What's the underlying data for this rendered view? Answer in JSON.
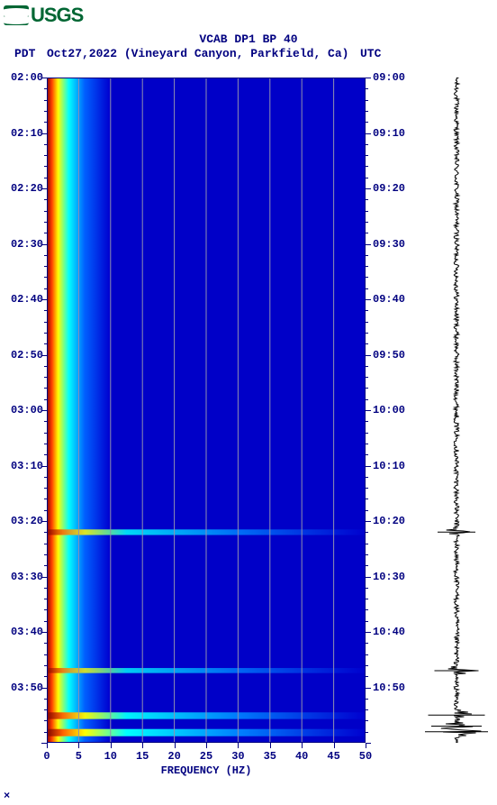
{
  "logo_text": "USGS",
  "title": "VCAB DP1 BP 40",
  "timezone_left": "PDT",
  "timezone_right": "UTC",
  "date_location": "Oct27,2022 (Vineyard Canyon, Parkfield, Ca)",
  "x_axis_label": "FREQUENCY (HZ)",
  "chart": {
    "type": "spectrogram",
    "x_range": [
      0,
      50
    ],
    "x_ticks": [
      0,
      5,
      10,
      15,
      20,
      25,
      30,
      35,
      40,
      45,
      50
    ],
    "time_start_pdt": "02:00",
    "time_end_pdt": "04:00",
    "time_start_utc": "09:00",
    "time_end_utc": "11:00",
    "y_ticks_pdt": [
      "02:00",
      "02:10",
      "02:20",
      "02:30",
      "02:40",
      "02:50",
      "03:00",
      "03:10",
      "03:20",
      "03:30",
      "03:40",
      "03:50"
    ],
    "y_ticks_utc": [
      "09:00",
      "09:10",
      "09:20",
      "09:30",
      "09:40",
      "09:50",
      "10:00",
      "10:10",
      "10:20",
      "10:30",
      "10:40",
      "10:50"
    ],
    "minor_tick_minutes": 2,
    "grid_x_values": [
      5,
      10,
      15,
      20,
      25,
      30,
      35,
      40,
      45
    ],
    "background_color": "#0000c8",
    "colormap_stops": [
      {
        "v": 0,
        "c": "#000090"
      },
      {
        "v": 0.25,
        "c": "#0000ff"
      },
      {
        "v": 0.5,
        "c": "#00ffff"
      },
      {
        "v": 0.7,
        "c": "#ffff00"
      },
      {
        "v": 0.85,
        "c": "#ff8000"
      },
      {
        "v": 1,
        "c": "#800000"
      }
    ],
    "low_freq_band": {
      "hz_range": [
        0,
        7
      ],
      "intensity": "high"
    },
    "events": [
      {
        "pdt": "03:22",
        "intensity": 0.7,
        "extent_hz": 50
      },
      {
        "pdt": "03:47",
        "intensity": 0.6,
        "extent_hz": 50
      },
      {
        "pdt": "03:55",
        "intensity": 0.9,
        "extent_hz": 50
      },
      {
        "pdt": "03:58",
        "intensity": 1.0,
        "extent_hz": 50
      }
    ]
  },
  "waveform": {
    "color": "#000000",
    "baseline_amplitude": 0.08,
    "spikes": [
      {
        "pdt": "03:22",
        "amp": 0.6
      },
      {
        "pdt": "03:47",
        "amp": 0.7
      },
      {
        "pdt": "03:55",
        "amp": 0.9
      },
      {
        "pdt": "03:57",
        "amp": 0.8
      },
      {
        "pdt": "03:58",
        "amp": 1.0
      }
    ]
  },
  "footer_mark": "×"
}
